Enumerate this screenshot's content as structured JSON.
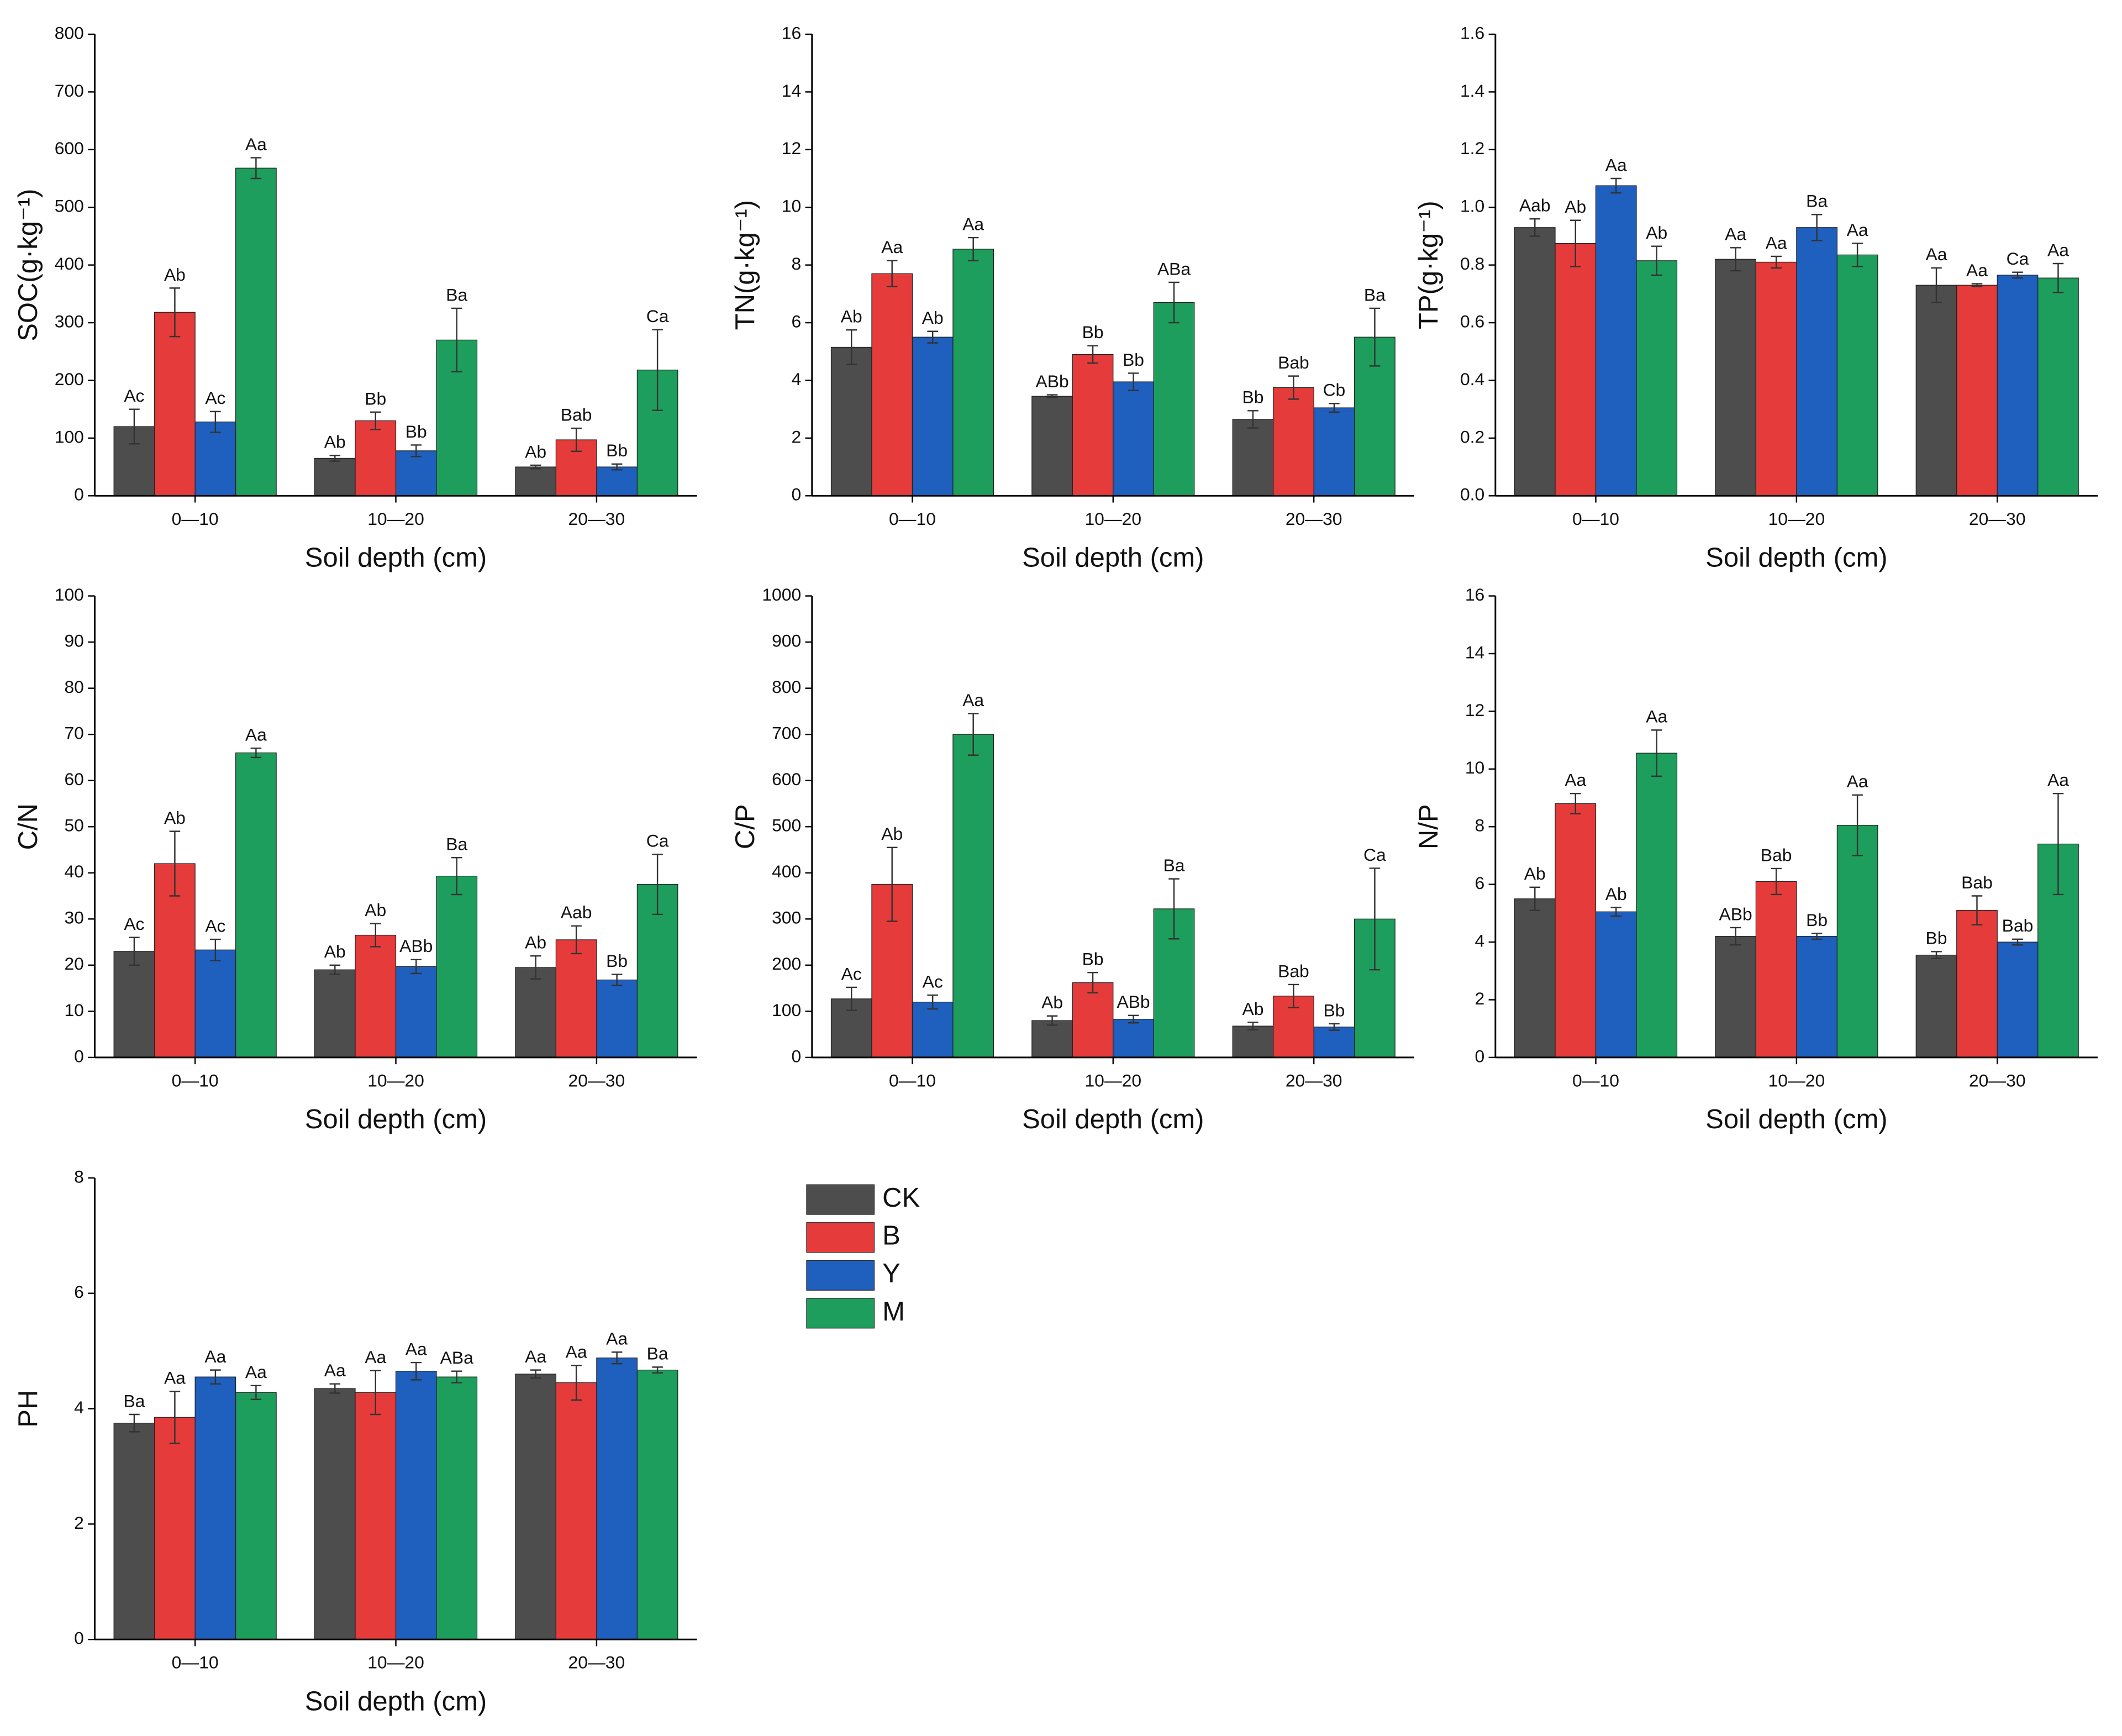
{
  "legend": [
    {
      "name": "CK",
      "color": "#4d4d4d"
    },
    {
      "name": "B",
      "color": "#e63b3b"
    },
    {
      "name": "Y",
      "color": "#1f5fbd"
    },
    {
      "name": "M",
      "color": "#1e9e5c"
    }
  ],
  "chart_data": [
    {
      "type": "bar",
      "ylabel": "SOC(g·kg⁻¹)",
      "xlabel": "Soil depth (cm)",
      "categories": [
        "0—10",
        "10—20",
        "20—30"
      ],
      "ylim": [
        0,
        800
      ],
      "yticks": [
        0,
        100,
        200,
        300,
        400,
        500,
        600,
        700,
        800
      ],
      "series": [
        {
          "values": [
            120,
            65,
            50
          ],
          "errors": [
            30,
            5,
            3
          ],
          "letters": [
            "Ac",
            "Ab",
            "Ab"
          ]
        },
        {
          "values": [
            318,
            130,
            97
          ],
          "errors": [
            42,
            15,
            20
          ],
          "letters": [
            "Ab",
            "Bb",
            "Bab"
          ]
        },
        {
          "values": [
            128,
            78,
            50
          ],
          "errors": [
            18,
            10,
            5
          ],
          "letters": [
            "Ac",
            "Bb",
            "Bb"
          ]
        },
        {
          "values": [
            568,
            270,
            218
          ],
          "errors": [
            18,
            55,
            70
          ],
          "letters": [
            "Aa",
            "Ba",
            "Ca"
          ]
        }
      ]
    },
    {
      "type": "bar",
      "ylabel": "TN(g·kg⁻¹)",
      "xlabel": "Soil depth (cm)",
      "categories": [
        "0—10",
        "10—20",
        "20—30"
      ],
      "ylim": [
        0,
        16
      ],
      "yticks": [
        0,
        2,
        4,
        6,
        8,
        10,
        12,
        14,
        16
      ],
      "series": [
        {
          "values": [
            5.15,
            3.45,
            2.65
          ],
          "errors": [
            0.6,
            0.05,
            0.3
          ],
          "letters": [
            "Ab",
            "ABb",
            "Bb"
          ]
        },
        {
          "values": [
            7.7,
            4.9,
            3.75
          ],
          "errors": [
            0.45,
            0.3,
            0.4
          ],
          "letters": [
            "Aa",
            "Bb",
            "Bab"
          ]
        },
        {
          "values": [
            5.5,
            3.95,
            3.05
          ],
          "errors": [
            0.2,
            0.3,
            0.15
          ],
          "letters": [
            "Ab",
            "Bb",
            "Cb"
          ]
        },
        {
          "values": [
            8.55,
            6.7,
            5.5
          ],
          "errors": [
            0.4,
            0.7,
            1.0
          ],
          "letters": [
            "Aa",
            "ABa",
            "Ba"
          ]
        }
      ]
    },
    {
      "type": "bar",
      "ylabel": "TP(g·kg⁻¹)",
      "xlabel": "Soil depth (cm)",
      "categories": [
        "0—10",
        "10—20",
        "20—30"
      ],
      "ylim": [
        0,
        1.6
      ],
      "yticks": [
        {
          "value": 0,
          "label": "0.0"
        },
        0.2,
        0.4,
        0.6,
        0.8,
        {
          "value": 1,
          "label": "1.0"
        },
        1.2,
        1.4,
        1.6
      ],
      "series": [
        {
          "values": [
            0.93,
            0.82,
            0.73
          ],
          "errors": [
            0.03,
            0.04,
            0.06
          ],
          "letters": [
            "Aab",
            "Aa",
            "Aa"
          ]
        },
        {
          "values": [
            0.875,
            0.81,
            0.73
          ],
          "errors": [
            0.08,
            0.02,
            0.005
          ],
          "letters": [
            "Ab",
            "Aa",
            "Aa"
          ]
        },
        {
          "values": [
            1.075,
            0.93,
            0.765
          ],
          "errors": [
            0.025,
            0.045,
            0.01
          ],
          "letters": [
            "Aa",
            "Ba",
            "Ca"
          ]
        },
        {
          "values": [
            0.815,
            0.835,
            0.755
          ],
          "errors": [
            0.05,
            0.04,
            0.05
          ],
          "letters": [
            "Ab",
            "Aa",
            "Aa"
          ]
        }
      ]
    },
    {
      "type": "bar",
      "ylabel": "C/N",
      "xlabel": "Soil depth (cm)",
      "categories": [
        "0—10",
        "10—20",
        "20—30"
      ],
      "ylim": [
        0,
        100
      ],
      "yticks": [
        0,
        10,
        20,
        30,
        40,
        50,
        60,
        70,
        80,
        90,
        100
      ],
      "series": [
        {
          "values": [
            23,
            19,
            19.5
          ],
          "errors": [
            3,
            1,
            2.5
          ],
          "letters": [
            "Ac",
            "Ab",
            "Ab"
          ]
        },
        {
          "values": [
            42,
            26.5,
            25.5
          ],
          "errors": [
            7,
            2.5,
            3
          ],
          "letters": [
            "Ab",
            "Ab",
            "Aab"
          ]
        },
        {
          "values": [
            23.3,
            19.7,
            16.8
          ],
          "errors": [
            2.3,
            1.5,
            1.2
          ],
          "letters": [
            "Ac",
            "ABb",
            "Bb"
          ]
        },
        {
          "values": [
            66,
            39.3,
            37.5
          ],
          "errors": [
            1,
            4,
            6.5
          ],
          "letters": [
            "Aa",
            "Ba",
            "Ca"
          ]
        }
      ]
    },
    {
      "type": "bar",
      "ylabel": "C/P",
      "xlabel": "Soil depth (cm)",
      "categories": [
        "0—10",
        "10—20",
        "20—30"
      ],
      "ylim": [
        0,
        1000
      ],
      "yticks": [
        0,
        100,
        200,
        300,
        400,
        500,
        600,
        700,
        800,
        900,
        1000
      ],
      "series": [
        {
          "values": [
            127,
            80,
            68
          ],
          "errors": [
            25,
            10,
            8
          ],
          "letters": [
            "Ac",
            "Ab",
            "Ab"
          ]
        },
        {
          "values": [
            375,
            162,
            133
          ],
          "errors": [
            80,
            22,
            25
          ],
          "letters": [
            "Ab",
            "Bb",
            "Bab"
          ]
        },
        {
          "values": [
            120,
            83,
            66
          ],
          "errors": [
            15,
            8,
            7
          ],
          "letters": [
            "Ac",
            "ABb",
            "Bb"
          ]
        },
        {
          "values": [
            700,
            322,
            300
          ],
          "errors": [
            45,
            65,
            110
          ],
          "letters": [
            "Aa",
            "Ba",
            "Ca"
          ]
        }
      ]
    },
    {
      "type": "bar",
      "ylabel": "N/P",
      "xlabel": "Soil depth (cm)",
      "categories": [
        "0—10",
        "10—20",
        "20—30"
      ],
      "ylim": [
        0,
        16
      ],
      "yticks": [
        0,
        2,
        4,
        6,
        8,
        10,
        12,
        14,
        16
      ],
      "series": [
        {
          "values": [
            5.5,
            4.2,
            3.55
          ],
          "errors": [
            0.4,
            0.3,
            0.12
          ],
          "letters": [
            "Ab",
            "ABb",
            "Bb"
          ]
        },
        {
          "values": [
            8.8,
            6.1,
            5.1
          ],
          "errors": [
            0.35,
            0.45,
            0.5
          ],
          "letters": [
            "Aa",
            "Bab",
            "Bab"
          ]
        },
        {
          "values": [
            5.05,
            4.2,
            4.0
          ],
          "errors": [
            0.15,
            0.1,
            0.1
          ],
          "letters": [
            "Ab",
            "Bb",
            "Bab"
          ]
        },
        {
          "values": [
            10.55,
            8.05,
            7.4
          ],
          "errors": [
            0.8,
            1.05,
            1.75
          ],
          "letters": [
            "Aa",
            "Aa",
            "Aa"
          ]
        }
      ]
    },
    {
      "type": "bar",
      "ylabel": "PH",
      "xlabel": "Soil depth (cm)",
      "categories": [
        "0—10",
        "10—20",
        "20—30"
      ],
      "ylim": [
        0,
        8
      ],
      "yticks": [
        0,
        2,
        4,
        6,
        8
      ],
      "series": [
        {
          "values": [
            3.75,
            4.35,
            4.6
          ],
          "errors": [
            0.15,
            0.08,
            0.07
          ],
          "letters": [
            "Ba",
            "Aa",
            "Aa"
          ]
        },
        {
          "values": [
            3.85,
            4.28,
            4.45
          ],
          "errors": [
            0.45,
            0.38,
            0.3
          ],
          "letters": [
            "Aa",
            "Aa",
            "Aa"
          ]
        },
        {
          "values": [
            4.55,
            4.65,
            4.88
          ],
          "errors": [
            0.12,
            0.15,
            0.1
          ],
          "letters": [
            "Aa",
            "Aa",
            "Aa"
          ]
        },
        {
          "values": [
            4.28,
            4.55,
            4.67
          ],
          "errors": [
            0.12,
            0.1,
            0.05
          ],
          "letters": [
            "Aa",
            "ABa",
            "Ba"
          ]
        }
      ]
    }
  ]
}
